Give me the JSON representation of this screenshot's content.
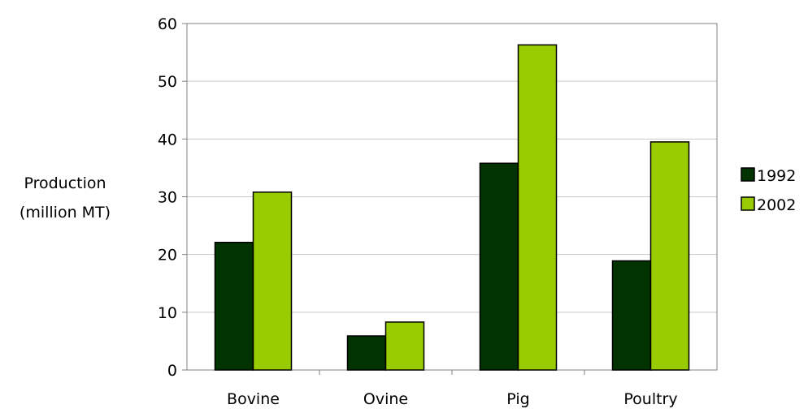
{
  "chart_data": {
    "type": "bar",
    "categories": [
      "Bovine",
      "Ovine",
      "Pig",
      "Poultry"
    ],
    "series": [
      {
        "name": "1992",
        "values": [
          22.1,
          5.9,
          35.8,
          18.9
        ],
        "color": "#003300"
      },
      {
        "name": "2002",
        "values": [
          30.8,
          8.3,
          56.3,
          39.5
        ],
        "color": "#99cc00"
      }
    ],
    "ylabel_lines": [
      "Production",
      "(million MT)"
    ],
    "ylim": [
      0,
      60
    ],
    "yticks": [
      "0",
      "10",
      "20",
      "30",
      "40",
      "50",
      "60"
    ],
    "grid": true,
    "legend_position": "right"
  }
}
